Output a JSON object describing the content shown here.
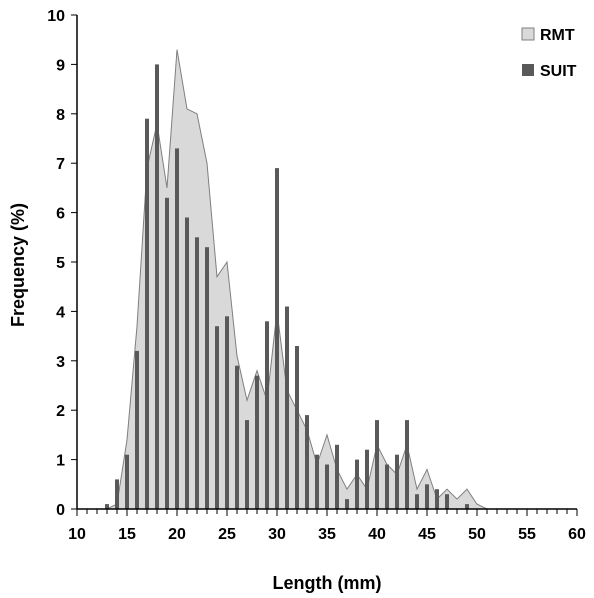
{
  "chart_data": {
    "type": "bar",
    "xlabel": "Length (mm)",
    "ylabel": "Frequency (%)",
    "xlim": [
      10,
      60
    ],
    "ylim": [
      0,
      10
    ],
    "x_ticks": [
      10,
      15,
      20,
      25,
      30,
      35,
      40,
      45,
      50,
      55,
      60
    ],
    "y_ticks": [
      0,
      1,
      2,
      3,
      4,
      5,
      6,
      7,
      8,
      9,
      10
    ],
    "legend_position": "top-right",
    "series": [
      {
        "name": "RMT",
        "type": "area",
        "color": "#d9d9d9",
        "x": [
          10,
          13,
          14,
          15,
          16,
          17,
          18,
          19,
          20,
          21,
          22,
          23,
          24,
          25,
          26,
          27,
          28,
          29,
          30,
          31,
          32,
          33,
          34,
          35,
          36,
          37,
          38,
          39,
          40,
          41,
          42,
          43,
          44,
          45,
          46,
          47,
          48,
          49,
          50,
          51,
          60
        ],
        "y": [
          0,
          0,
          0.1,
          1.4,
          3.7,
          6.9,
          7.8,
          6.5,
          9.3,
          8.1,
          8.0,
          7.0,
          4.7,
          5.0,
          3.1,
          2.2,
          2.8,
          2.2,
          4.0,
          2.4,
          2.0,
          1.6,
          0.9,
          1.5,
          0.8,
          0.4,
          0.7,
          0.4,
          1.3,
          0.9,
          0.7,
          1.3,
          0.4,
          0.8,
          0.2,
          0.4,
          0.2,
          0.4,
          0.1,
          0,
          0
        ]
      },
      {
        "name": "SUIT",
        "type": "bar",
        "color": "#595959",
        "x": [
          13,
          14,
          15,
          16,
          17,
          18,
          19,
          20,
          21,
          22,
          23,
          24,
          25,
          26,
          27,
          28,
          29,
          30,
          31,
          32,
          33,
          34,
          35,
          36,
          37,
          38,
          39,
          40,
          41,
          42,
          43,
          44,
          45,
          46,
          47,
          48,
          49
        ],
        "y": [
          0.1,
          0.6,
          1.1,
          3.2,
          7.9,
          9.0,
          6.3,
          7.3,
          5.9,
          5.5,
          5.3,
          3.7,
          3.9,
          2.9,
          1.8,
          2.7,
          3.8,
          6.9,
          4.1,
          3.3,
          1.9,
          1.1,
          0.9,
          1.3,
          0.2,
          1.0,
          1.2,
          1.8,
          0.9,
          1.1,
          1.8,
          0.3,
          0.5,
          0.4,
          0.3,
          0,
          0.1
        ]
      }
    ]
  }
}
